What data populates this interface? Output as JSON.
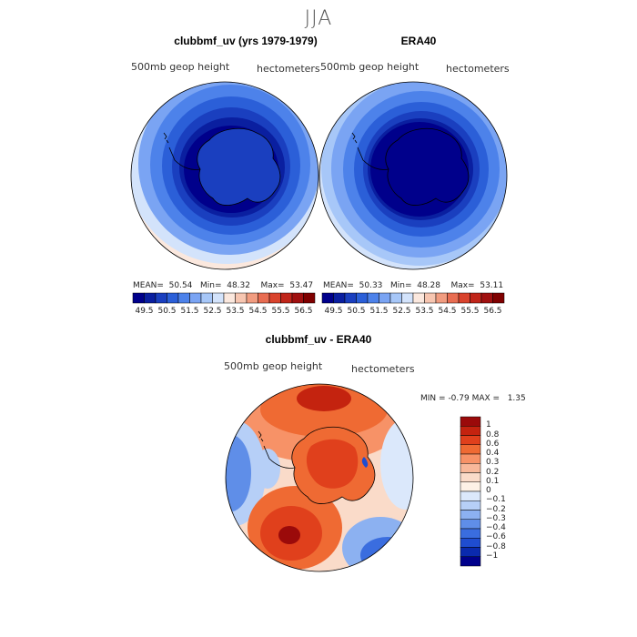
{
  "figure_title": "JJA",
  "panels": [
    {
      "title": "clubbmf_uv (yrs 1979-1979)",
      "variable": "500mb  geop height",
      "units": "hectometers",
      "stats": {
        "mean": "50.54",
        "min": "48.32",
        "max": "53.47"
      }
    },
    {
      "title": "ERA40",
      "variable": "500mb  geop height",
      "units": "hectometers",
      "stats": {
        "mean": "50.33",
        "min": "48.28",
        "max": "53.11"
      }
    }
  ],
  "stat_labels": {
    "mean": "MEAN=",
    "min": "Min=",
    "max": "Max="
  },
  "top_colorbar": {
    "colors": [
      "#00008b",
      "#0a1fa0",
      "#1a3fbf",
      "#2b5fd8",
      "#4d82ea",
      "#7aa4f3",
      "#a7c7f8",
      "#d3e3fb",
      "#fbe8de",
      "#f7c6b1",
      "#f19c80",
      "#e86d52",
      "#d9432d",
      "#c0251a",
      "#a01010",
      "#7f0000"
    ],
    "labels": [
      "49.5",
      "50.5",
      "51.5",
      "52.5",
      "53.5",
      "54.5",
      "55.5",
      "56.5"
    ]
  },
  "diff_panel": {
    "title": "clubbmf_uv - ERA40",
    "variable": "500mb  geop height",
    "units": "hectometers",
    "min_label": "MIN =",
    "min_value": "-0.79",
    "max_label": "MAX =",
    "max_value": "1.35"
  },
  "diff_colorbar": {
    "colors": [
      "#9b0a0a",
      "#c4230f",
      "#e0401c",
      "#ef6a33",
      "#f79267",
      "#f8b89a",
      "#fadbc9",
      "#fdf1e6",
      "#dbe8fb",
      "#b6cff7",
      "#8cb1f1",
      "#5f8ee8",
      "#3a6ddf",
      "#1f4dd0",
      "#0a2aae",
      "#00008b"
    ],
    "labels": [
      "1",
      "0.8",
      "0.6",
      "0.4",
      "0.3",
      "0.2",
      "0.1",
      "0",
      "−0.1",
      "−0.2",
      "−0.3",
      "−0.4",
      "−0.6",
      "−0.8",
      "−1"
    ]
  }
}
